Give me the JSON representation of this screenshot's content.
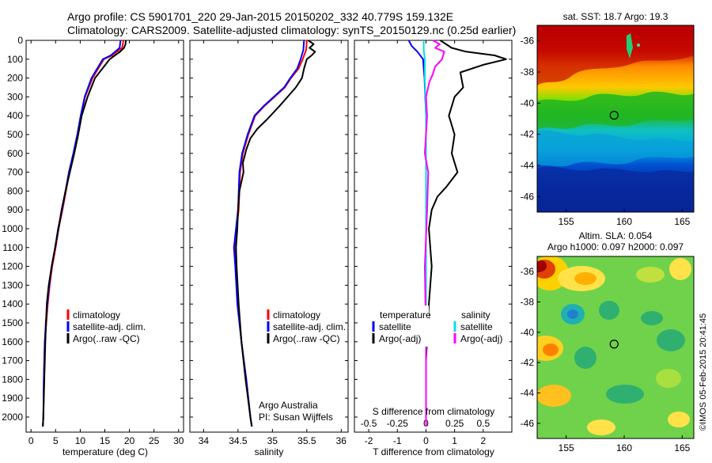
{
  "header": {
    "line1": "Argo profile: CS 5901701_220 29-Jan-2015 20150202_332 40.779S 159.132E",
    "line2": "Climatology: CARS2009. Satellite-adjusted climatology: synTS_20150129.nc (0.25d earlier)"
  },
  "credit": "©IMOS 05-Feb-2015 20:41:45",
  "colors": {
    "climatology": "#ff0000",
    "satellite": "#0000ff",
    "argo": "#000000",
    "salinity_satellite": "#00e0e0",
    "salinity_argo": "#ff00ff"
  },
  "chart_data": [
    {
      "type": "line",
      "id": "temperature",
      "xlabel": "temperature (deg C)",
      "ylabel": "",
      "xlim": [
        -1,
        31
      ],
      "ylim": [
        0,
        2080
      ],
      "x_ticks": [
        0,
        5,
        10,
        15,
        20,
        25,
        30
      ],
      "y_ticks": [
        0,
        100,
        200,
        300,
        400,
        500,
        600,
        700,
        800,
        900,
        1000,
        1100,
        1200,
        1300,
        1400,
        1500,
        1600,
        1700,
        1800,
        1900,
        2000
      ],
      "legend": [
        "climatology",
        "satellite-adj. clim.",
        "Argo(..raw -QC)"
      ],
      "legend_position": "lower-middle",
      "series": [
        {
          "name": "climatology",
          "x": [
            18.8,
            18.5,
            16.5,
            14.8,
            12.5,
            11.0,
            10.2,
            9.5,
            8.7,
            7.8,
            7.1,
            6.4,
            5.6,
            5.0,
            4.3,
            3.8,
            3.4,
            3.1,
            2.8,
            2.6,
            2.5,
            2.4
          ],
          "y": [
            0,
            40,
            80,
            100,
            200,
            300,
            400,
            500,
            600,
            700,
            800,
            900,
            1000,
            1100,
            1200,
            1300,
            1400,
            1500,
            1600,
            1800,
            2000,
            2050
          ]
        },
        {
          "name": "satellite-adj. clim.",
          "x": [
            18.2,
            18.0,
            16.2,
            14.6,
            12.3,
            10.9,
            10.1,
            9.4,
            8.6,
            7.7,
            7.0,
            6.3,
            5.5,
            4.9,
            4.2,
            3.7,
            3.3,
            3.0,
            2.8,
            2.6,
            2.5,
            2.4
          ],
          "y": [
            0,
            40,
            80,
            100,
            200,
            300,
            400,
            500,
            600,
            700,
            800,
            900,
            1000,
            1100,
            1200,
            1300,
            1400,
            1500,
            1600,
            1800,
            2000,
            2050
          ]
        },
        {
          "name": "Argo(..raw -QC)",
          "x": [
            19.3,
            19.2,
            18.9,
            18.1,
            16.0,
            14.5,
            13.0,
            11.5,
            10.3,
            9.6,
            8.8,
            7.9,
            7.0,
            6.2,
            5.6,
            4.9,
            4.2,
            3.6,
            3.2,
            2.9,
            2.7,
            2.5,
            2.4
          ],
          "y": [
            0,
            20,
            40,
            60,
            100,
            150,
            200,
            300,
            400,
            500,
            600,
            700,
            800,
            900,
            1000,
            1100,
            1200,
            1300,
            1400,
            1600,
            1800,
            2000,
            2050
          ]
        }
      ]
    },
    {
      "type": "line",
      "id": "salinity",
      "xlabel": "salinity",
      "ylabel": "",
      "xlim": [
        33.8,
        36.1
      ],
      "ylim": [
        0,
        2080
      ],
      "x_ticks": [
        34,
        34.5,
        35,
        35.5,
        36
      ],
      "y_ticks": [
        0,
        100,
        200,
        300,
        400,
        500,
        600,
        700,
        800,
        900,
        1000,
        1100,
        1200,
        1300,
        1400,
        1500,
        1600,
        1700,
        1800,
        1900,
        2000
      ],
      "legend": [
        "climatology",
        "satellite-adj. clim.",
        "Argo(..raw -QC)"
      ],
      "legend_position": "lower-right",
      "annotation": [
        "Argo Australia",
        "PI: Susan Wijffels"
      ],
      "series": [
        {
          "name": "climatology",
          "x": [
            35.5,
            35.49,
            35.44,
            35.38,
            35.27,
            35.18,
            35.03,
            34.88,
            34.75,
            34.65,
            34.57,
            34.53,
            34.51,
            34.48,
            34.45,
            34.47,
            34.5,
            34.55,
            34.62,
            34.68,
            34.7
          ],
          "y": [
            0,
            50,
            100,
            150,
            200,
            250,
            300,
            350,
            400,
            500,
            600,
            700,
            900,
            1000,
            1100,
            1200,
            1400,
            1600,
            1800,
            2000,
            2050
          ]
        },
        {
          "name": "satellite-adj. clim.",
          "x": [
            35.46,
            35.45,
            35.41,
            35.36,
            35.26,
            35.17,
            35.02,
            34.87,
            34.74,
            34.64,
            34.56,
            34.52,
            34.5,
            34.47,
            34.44,
            34.46,
            34.49,
            34.55,
            34.62,
            34.68,
            34.7
          ],
          "y": [
            0,
            50,
            100,
            150,
            200,
            250,
            300,
            350,
            400,
            500,
            600,
            700,
            900,
            1000,
            1100,
            1200,
            1400,
            1600,
            1800,
            2000,
            2050
          ]
        },
        {
          "name": "Argo(..raw -QC)",
          "x": [
            35.52,
            35.6,
            35.54,
            35.62,
            35.57,
            35.5,
            35.46,
            35.43,
            35.34,
            35.22,
            35.1,
            34.92,
            34.78,
            34.68,
            34.62,
            34.57,
            34.58,
            34.52,
            34.5,
            34.49,
            34.47,
            34.48,
            34.51,
            34.55,
            34.61,
            34.68,
            34.7
          ],
          "y": [
            0,
            20,
            40,
            60,
            80,
            100,
            150,
            200,
            250,
            300,
            350,
            420,
            470,
            520,
            580,
            650,
            700,
            800,
            900,
            1000,
            1100,
            1200,
            1400,
            1600,
            1800,
            2000,
            2050
          ]
        }
      ]
    },
    {
      "type": "line",
      "id": "difference",
      "xlabel": "T difference from climatology",
      "ylabel": "",
      "secondary_xlabel": "S difference from climatology",
      "xlim": [
        -2.5,
        3.0
      ],
      "ylim": [
        0,
        2080
      ],
      "x_ticks": [
        -2,
        -1,
        0,
        1,
        2
      ],
      "secondary_x_ticks": [
        -0.5,
        -0.25,
        0,
        0.25,
        0.5
      ],
      "y_ticks": [
        0,
        100,
        200,
        300,
        400,
        500,
        600,
        700,
        800,
        900,
        1000,
        1100,
        1200,
        1300,
        1400,
        1500,
        1600,
        1700,
        1800,
        1900,
        2000
      ],
      "legend_groups": [
        {
          "title": "temperature",
          "items": [
            "satellite",
            "Argo(-adj)"
          ]
        },
        {
          "title": "salinity",
          "items": [
            "satellite",
            "Argo(-adj)"
          ]
        }
      ],
      "legend_position": "lower-middle",
      "series": [
        {
          "name": "temperature satellite",
          "x": [
            -0.6,
            -0.5,
            -0.3,
            -0.1,
            -0.05,
            0,
            0,
            0,
            0
          ],
          "y": [
            0,
            30,
            60,
            100,
            200,
            400,
            1000,
            1600,
            2050
          ]
        },
        {
          "name": "temperature Argo(-adj)",
          "x": [
            0.5,
            0.9,
            1.4,
            2.4,
            2.8,
            2.0,
            1.2,
            1.3,
            1.0,
            0.8,
            1.0,
            0.9,
            1.1,
            0.7,
            0.4,
            0.2,
            0.1,
            0.2,
            0.1,
            0,
            0
          ],
          "y": [
            0,
            40,
            60,
            80,
            100,
            130,
            170,
            250,
            300,
            400,
            500,
            600,
            700,
            780,
            830,
            900,
            1000,
            1200,
            1400,
            1700,
            2050
          ]
        },
        {
          "name": "salinity satellite",
          "x": [
            -0.02,
            -0.02,
            -0.01,
            -0.01,
            0,
            0,
            0,
            0,
            0
          ],
          "y": [
            0,
            50,
            100,
            200,
            400,
            800,
            1200,
            1600,
            2050
          ]
        },
        {
          "name": "salinity Argo(-adj)",
          "x": [
            0.06,
            0.12,
            0.08,
            0.16,
            0.14,
            0.08,
            0.06,
            0.03,
            0,
            0.01,
            -0.01,
            0.02,
            0.01,
            -0.01,
            0,
            0
          ],
          "y": [
            0,
            20,
            40,
            60,
            100,
            140,
            180,
            220,
            300,
            400,
            600,
            700,
            900,
            1200,
            1600,
            2050
          ]
        }
      ]
    },
    {
      "type": "heatmap",
      "id": "sst-map",
      "title": "sat. SST: 18.7  Argo: 19.3",
      "xlim": [
        152.5,
        166
      ],
      "ylim": [
        -47,
        -35
      ],
      "x_ticks": [
        155,
        160,
        165
      ],
      "y_ticks": [
        -36,
        -38,
        -40,
        -42,
        -44,
        -46
      ],
      "marker": {
        "lon": 159.132,
        "lat": -40.779
      }
    },
    {
      "type": "heatmap",
      "id": "sla-map",
      "title": "Altim. SLA: 0.054",
      "subtitle": "Argo h1000: 0.097 h2000: 0.097",
      "xlim": [
        152.5,
        166
      ],
      "ylim": [
        -47,
        -35
      ],
      "x_ticks": [
        155,
        160,
        165
      ],
      "y_ticks": [
        -36,
        -38,
        -40,
        -42,
        -44,
        -46
      ],
      "marker": {
        "lon": 159.132,
        "lat": -40.779
      }
    }
  ]
}
